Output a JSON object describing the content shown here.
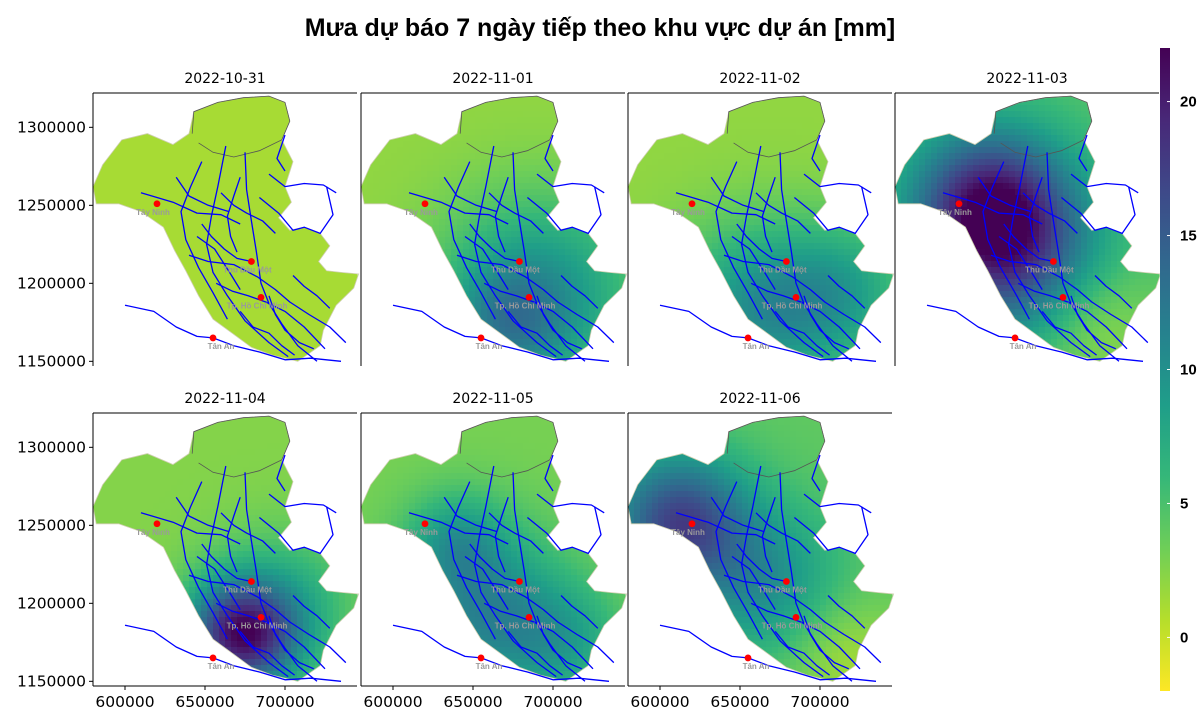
{
  "page": {
    "title": "Mưa dự báo 7 ngày tiếp theo khu vực dự án [mm]"
  },
  "chart_data": {
    "type": "heatmap",
    "title": "Mưa dự báo 7 ngày tiếp theo khu vực dự án [mm]",
    "xlim": [
      580000,
      745000
    ],
    "ylim": [
      1147000,
      1322000
    ],
    "x_ticks": [
      600000,
      650000,
      700000
    ],
    "x_tick_labels": [
      "600000",
      "650000",
      "700000"
    ],
    "y_ticks": [
      1150000,
      1200000,
      1250000,
      1300000
    ],
    "y_tick_labels": [
      "1150000",
      "1200000",
      "1250000",
      "1300000"
    ],
    "colorbar": {
      "min": -2,
      "max": 22,
      "ticks": [
        0,
        5,
        10,
        15,
        20
      ],
      "tick_labels": [
        "0",
        "5",
        "10",
        "15",
        "20"
      ],
      "colormap": "viridis-reversed",
      "colors": [
        "#fde725",
        "#b5de2b",
        "#6ece58",
        "#35b779",
        "#1f9e89",
        "#26828e",
        "#31688e",
        "#3e4989",
        "#482878",
        "#440154"
      ]
    },
    "cities": [
      {
        "name": "Tây Ninh",
        "x": 620000,
        "y": 1251000
      },
      {
        "name": "Thủ Dầu Một",
        "x": 679000,
        "y": 1214000
      },
      {
        "name": "Tp. Hồ Chí Minh",
        "x": 685000,
        "y": 1191000
      },
      {
        "name": "Tân An",
        "x": 655000,
        "y": 1165000
      }
    ],
    "panels": [
      {
        "date": "2022-10-31",
        "base": 1.2,
        "sources": []
      },
      {
        "date": "2022-11-01",
        "base": 2.0,
        "sources": [
          {
            "x": 690000,
            "y": 1193000,
            "amp": 8,
            "r": 42000
          },
          {
            "x": 670000,
            "y": 1172000,
            "amp": 5,
            "r": 25000
          }
        ]
      },
      {
        "date": "2022-11-02",
        "base": 2.0,
        "sources": [
          {
            "x": 663000,
            "y": 1183000,
            "amp": 8,
            "r": 38000
          },
          {
            "x": 715000,
            "y": 1195000,
            "amp": 5,
            "r": 30000
          }
        ]
      },
      {
        "date": "2022-11-03",
        "base": 4.5,
        "sources": [
          {
            "x": 640000,
            "y": 1248000,
            "amp": 16.5,
            "r": 34000
          },
          {
            "x": 660000,
            "y": 1205000,
            "amp": 8,
            "r": 38000
          },
          {
            "x": 700000,
            "y": 1175000,
            "amp": -4,
            "r": 30000
          }
        ]
      },
      {
        "date": "2022-11-04",
        "base": 2.5,
        "sources": [
          {
            "x": 673000,
            "y": 1180000,
            "amp": 17.5,
            "r": 24000
          },
          {
            "x": 700000,
            "y": 1200000,
            "amp": 4,
            "r": 32000
          }
        ]
      },
      {
        "date": "2022-11-05",
        "base": 3.0,
        "sources": [
          {
            "x": 658000,
            "y": 1192000,
            "amp": 8,
            "r": 36000
          },
          {
            "x": 640000,
            "y": 1240000,
            "amp": 5,
            "r": 22000
          },
          {
            "x": 708000,
            "y": 1175000,
            "amp": 4,
            "r": 26000
          }
        ]
      },
      {
        "date": "2022-11-06",
        "base": 4.0,
        "sources": [
          {
            "x": 612000,
            "y": 1252000,
            "amp": 13,
            "r": 30000
          },
          {
            "x": 665000,
            "y": 1212000,
            "amp": 6,
            "r": 34000
          },
          {
            "x": 715000,
            "y": 1168000,
            "amp": -3,
            "r": 28000
          }
        ]
      }
    ]
  }
}
